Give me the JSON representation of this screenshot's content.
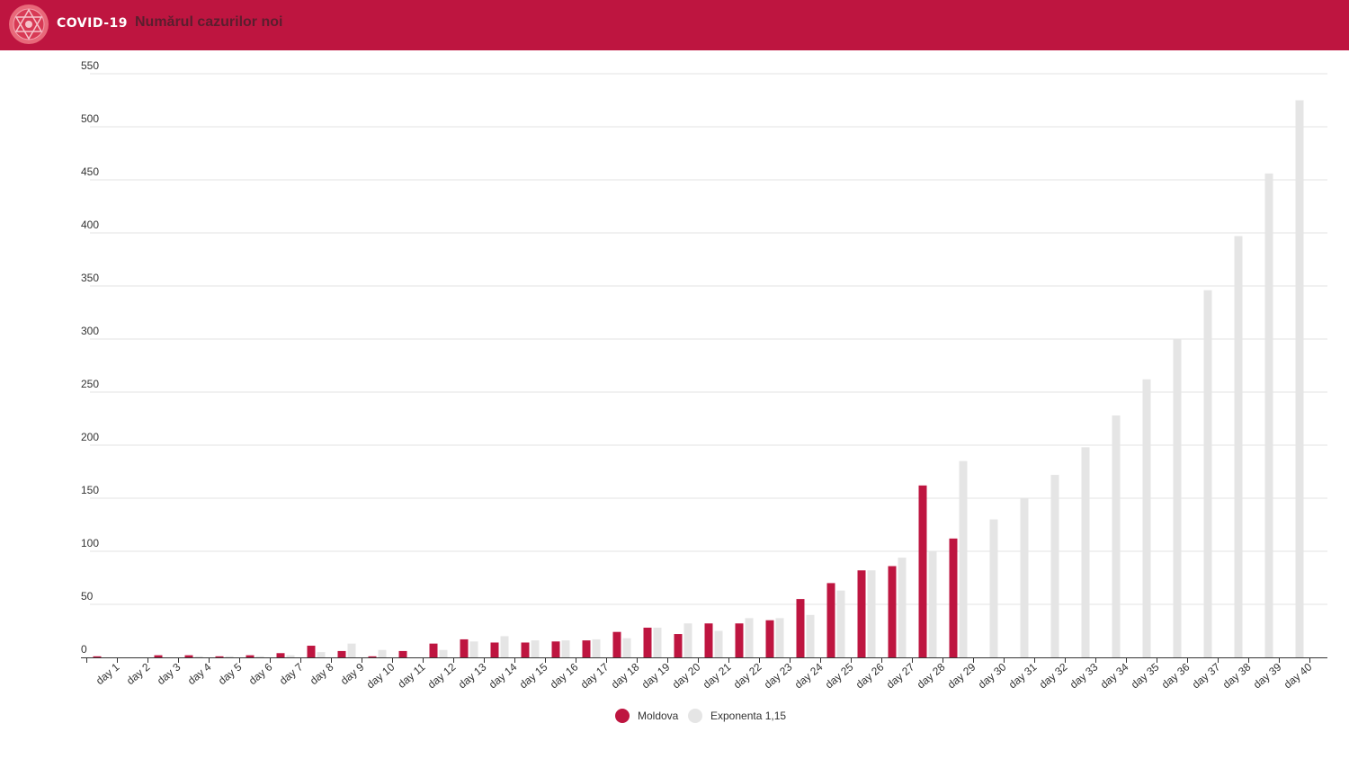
{
  "header": {
    "brand": "COVID-19",
    "chart_title": "Numărul cazurilor noi",
    "logo_icon": "virus-logo-icon",
    "color": "#be1540"
  },
  "chart_data": {
    "type": "bar",
    "categories": [
      "day 1",
      "day 2",
      "day 3",
      "day 4",
      "day 5",
      "day 6",
      "day 7",
      "day 8",
      "day 9",
      "day 10",
      "day 11",
      "day 12",
      "day 13",
      "day 14",
      "day 15",
      "day 16",
      "day 17",
      "day 18",
      "day 19",
      "day 20",
      "day 21",
      "day 22",
      "day 23",
      "day 24",
      "day 25",
      "day 26",
      "day 27",
      "day 28",
      "day 29",
      "day 30",
      "day 31",
      "day 32",
      "day 33",
      "day 34",
      "day 35",
      "day 36",
      "day 37",
      "day 38",
      "day 39",
      "day 40"
    ],
    "series": [
      {
        "name": "Moldova",
        "color": "#be1540",
        "values": [
          1,
          0,
          2,
          2,
          1,
          2,
          4,
          11,
          6,
          1,
          6,
          13,
          17,
          14,
          14,
          15,
          16,
          24,
          28,
          22,
          32,
          32,
          35,
          55,
          70,
          82,
          86,
          162,
          112,
          null,
          null,
          null,
          null,
          null,
          null,
          null,
          null,
          null,
          null,
          null
        ]
      },
      {
        "name": "Exponenta 1,15",
        "color": "#e5e5e5",
        "values": [
          0,
          0,
          0,
          1,
          1,
          1,
          2,
          5,
          13,
          7,
          0,
          7,
          15,
          20,
          16,
          16,
          17,
          18,
          28,
          32,
          25,
          37,
          37,
          40,
          63,
          82,
          94,
          100,
          185,
          130,
          150,
          172,
          198,
          228,
          262,
          300,
          346,
          397,
          456,
          525
        ]
      }
    ],
    "yticks": [
      0,
      50,
      100,
      150,
      200,
      250,
      300,
      350,
      400,
      450,
      500,
      550
    ],
    "ylim": [
      0,
      550
    ],
    "legend_position": "bottom-center",
    "grid": true
  }
}
